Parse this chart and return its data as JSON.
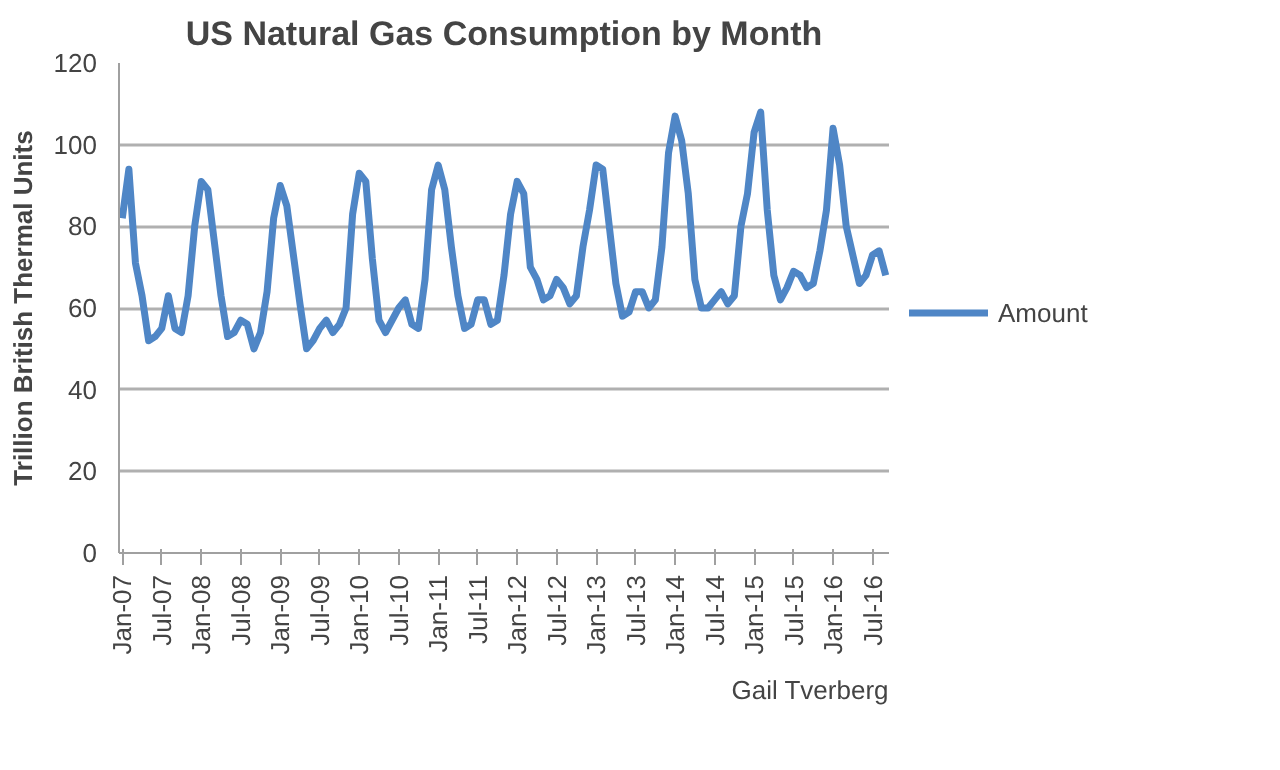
{
  "chart_data": {
    "type": "line",
    "title": "US Natural Gas Consumption by Month",
    "ylabel": "Trillion British Thermal Units",
    "categories": [
      "Jan-07",
      null,
      null,
      null,
      null,
      null,
      "Jul-07",
      null,
      null,
      null,
      null,
      null,
      "Jan-08",
      null,
      null,
      null,
      null,
      null,
      "Jul-08",
      null,
      null,
      null,
      null,
      null,
      "Jan-09",
      null,
      null,
      null,
      null,
      null,
      "Jul-09",
      null,
      null,
      null,
      null,
      null,
      "Jan-10",
      null,
      null,
      null,
      null,
      null,
      "Jul-10",
      null,
      null,
      null,
      null,
      null,
      "Jan-11",
      null,
      null,
      null,
      null,
      null,
      "Jul-11",
      null,
      null,
      null,
      null,
      null,
      "Jan-12",
      null,
      null,
      null,
      null,
      null,
      "Jul-12",
      null,
      null,
      null,
      null,
      null,
      "Jan-13",
      null,
      null,
      null,
      null,
      null,
      "Jul-13",
      null,
      null,
      null,
      null,
      null,
      "Jan-14",
      null,
      null,
      null,
      null,
      null,
      "Jul-14",
      null,
      null,
      null,
      null,
      null,
      "Jan-15",
      null,
      null,
      null,
      null,
      null,
      "Jul-15",
      null,
      null,
      null,
      null,
      null,
      "Jan-16",
      null,
      null,
      null,
      null,
      null,
      "Jul-16",
      null,
      null
    ],
    "series": [
      {
        "name": "Amount",
        "color": "#4f86c6",
        "values": [
          82,
          94,
          71,
          63,
          52,
          53,
          55,
          63,
          55,
          54,
          63,
          80,
          91,
          89,
          76,
          63,
          53,
          54,
          57,
          56,
          50,
          54,
          64,
          82,
          90,
          85,
          73,
          61,
          50,
          52,
          55,
          57,
          54,
          56,
          60,
          83,
          93,
          91,
          72,
          57,
          54,
          57,
          60,
          62,
          56,
          55,
          67,
          89,
          95,
          89,
          75,
          63,
          55,
          56,
          62,
          62,
          56,
          57,
          68,
          83,
          91,
          88,
          70,
          67,
          62,
          63,
          67,
          65,
          61,
          63,
          75,
          84,
          95,
          94,
          80,
          66,
          58,
          59,
          64,
          64,
          60,
          62,
          75,
          98,
          107,
          101,
          88,
          67,
          60,
          60,
          62,
          64,
          61,
          63,
          80,
          88,
          103,
          108,
          84,
          68,
          62,
          65,
          69,
          68,
          65,
          66,
          74,
          84,
          104,
          95,
          80,
          73,
          66,
          68,
          73,
          74,
          68
        ]
      }
    ],
    "ylim": [
      0,
      120
    ],
    "yticks": [
      0,
      20,
      40,
      60,
      80,
      100,
      120
    ],
    "grid": "y",
    "legend": "right",
    "line_style": "solid",
    "annotations": [
      "Gail Tverberg"
    ]
  }
}
